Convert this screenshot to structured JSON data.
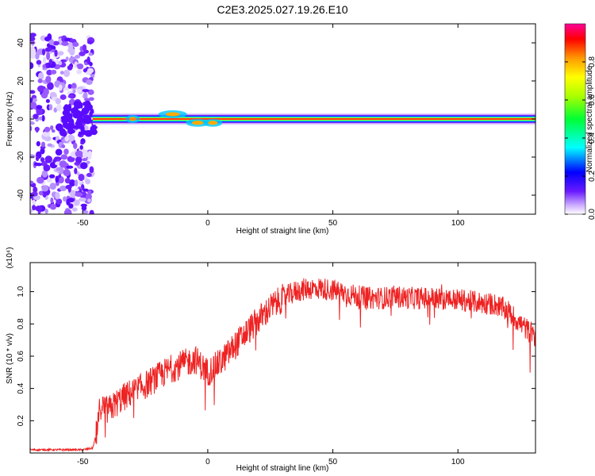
{
  "title": "C2E3.2025.027.19.26.E10",
  "chart_data": [
    {
      "type": "heatmap",
      "xlabel": "Height of straight line (km)",
      "ylabel": "Frequency (Hz)",
      "xlim": [
        -71,
        131
      ],
      "ylim": [
        -50,
        50
      ],
      "xticks": [
        -50,
        0,
        50,
        100
      ],
      "yticks": [
        -40,
        -20,
        0,
        20,
        40
      ],
      "colorbar": {
        "label": "Normalized spectral amplitude",
        "range": [
          0,
          1
        ],
        "ticks": [
          "0.0",
          "0.2",
          "0.4",
          "0.6",
          "0.8"
        ],
        "colormap": [
          "#ffffff",
          "#9a5cff",
          "#4a00ff",
          "#0000ff",
          "#00ffff",
          "#00ff44",
          "#aaff00",
          "#ffff00",
          "#ff9900",
          "#ff0000",
          "#ff0099"
        ]
      },
      "regions": [
        {
          "name": "noise",
          "x_range": [
            -71,
            -46
          ],
          "freq_range": [
            -50,
            45
          ],
          "amplitude": "low"
        },
        {
          "name": "signal",
          "x_range": [
            -46,
            131
          ],
          "freq_center": 0,
          "amplitude": "high"
        }
      ]
    },
    {
      "type": "line",
      "xlabel": "Height of straight line (km)",
      "ylabel": "SNR (10 * v/v)",
      "scale_label": "(x10⁴)",
      "xlim": [
        -71,
        131
      ],
      "ylim": [
        0,
        1.18
      ],
      "xticks": [
        -50,
        0,
        50,
        100
      ],
      "yticks": [
        "0.2",
        "0.4",
        "0.6",
        "0.8",
        "1.0"
      ],
      "color": "#ee2222",
      "series": [
        {
          "x": [
            -71,
            -60,
            -50,
            -46,
            -44,
            -43,
            -40,
            -35,
            -30,
            -25,
            -20,
            -15,
            -10,
            -5,
            0,
            5,
            10,
            15,
            20,
            25,
            30,
            35,
            40,
            45,
            50,
            55,
            60,
            65,
            70,
            75,
            80,
            85,
            90,
            95,
            100,
            105,
            110,
            115,
            120,
            125,
            131
          ],
          "values": [
            0.02,
            0.02,
            0.02,
            0.03,
            0.15,
            0.3,
            0.26,
            0.33,
            0.38,
            0.42,
            0.47,
            0.52,
            0.55,
            0.58,
            0.5,
            0.56,
            0.65,
            0.74,
            0.82,
            0.9,
            0.96,
            1.0,
            1.02,
            1.02,
            1.01,
            0.99,
            0.97,
            0.96,
            0.96,
            0.97,
            0.96,
            0.96,
            0.96,
            0.95,
            0.95,
            0.94,
            0.93,
            0.92,
            0.88,
            0.8,
            0.72
          ]
        }
      ]
    }
  ]
}
